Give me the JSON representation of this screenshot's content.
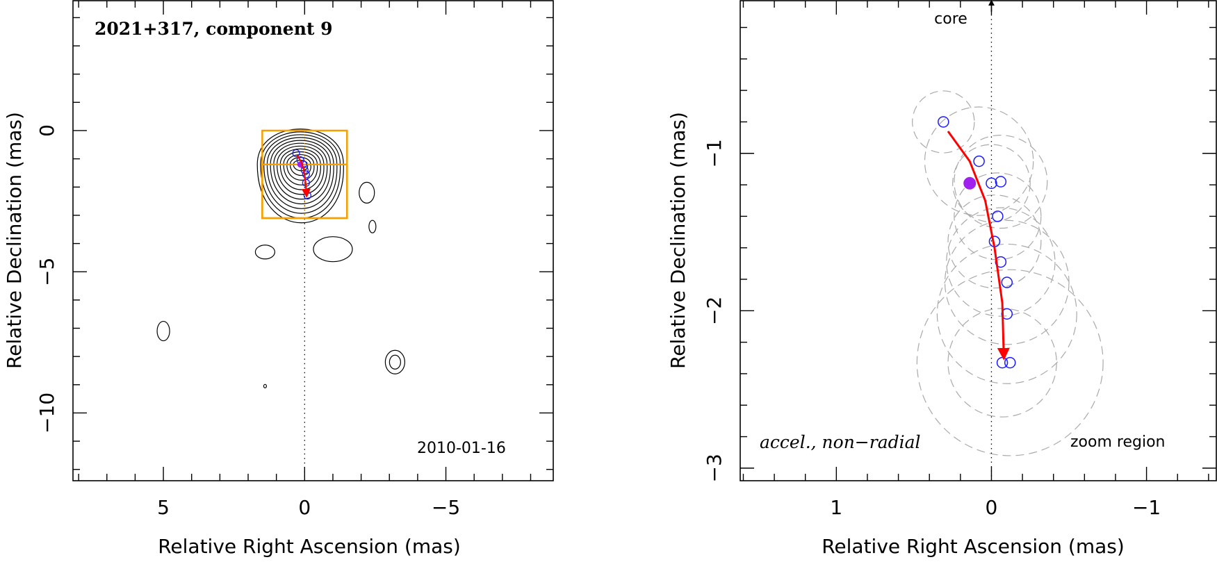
{
  "chart_data": [
    {
      "type": "scatter",
      "panel": "left",
      "title": "2021+317, component 9",
      "epoch": "2010-01-16",
      "xlabel": "Relative Right Ascension (mas)",
      "ylabel": "Relative Declination (mas)",
      "xlim": [
        8.2,
        -8.8
      ],
      "ylim": [
        -12.4,
        4.6
      ],
      "x_ticks": [
        5,
        0,
        -5
      ],
      "y_ticks": [
        0,
        -5,
        -10
      ],
      "x_tick_labels": [
        "5",
        "0",
        "−5"
      ],
      "y_tick_labels": [
        "0",
        "−5",
        "−10"
      ],
      "jet_axis_x": 0,
      "zoom_boxes": [
        {
          "x": [
            -1.5,
            1.5
          ],
          "y": [
            -3.1,
            0.0
          ]
        },
        {
          "x": [
            -1.5,
            1.5
          ],
          "y": [
            -3.1,
            -1.2
          ]
        }
      ],
      "component_positions": {
        "x": [
          0.3,
          0.15,
          0.05,
          0.0,
          -0.05,
          -0.05,
          -0.1
        ],
        "y": [
          -0.8,
          -1.05,
          -1.2,
          -1.4,
          -1.55,
          -1.85,
          -2.3
        ]
      },
      "current_position": {
        "x": 0.15,
        "y": -1.2
      },
      "trajectory": {
        "x": [
          0.27,
          0.12,
          0.03,
          -0.03,
          -0.07
        ],
        "y": [
          -0.87,
          -1.1,
          -1.4,
          -1.8,
          -2.32
        ]
      },
      "contours_note": "radio intensity contours"
    },
    {
      "type": "scatter",
      "panel": "right",
      "xlabel": "Relative Right Ascension (mas)",
      "ylabel": "Relative Declination (mas)",
      "xlim": [
        1.62,
        -1.45
      ],
      "ylim": [
        -3.08,
        -0.03
      ],
      "x_ticks": [
        1,
        0,
        -1
      ],
      "y_ticks": [
        -1,
        -2,
        -3
      ],
      "x_tick_labels": [
        "1",
        "0",
        "−1"
      ],
      "y_tick_labels": [
        "−1",
        "−2",
        "−3"
      ],
      "core_label": "core",
      "model_label": "accel., non−radial",
      "region_label": "zoom region",
      "positions": {
        "x": [
          0.31,
          0.08,
          0.0,
          -0.06,
          -0.04,
          -0.02,
          -0.06,
          -0.1,
          -0.1,
          -0.12,
          -0.07
        ],
        "y": [
          -0.8,
          -1.05,
          -1.19,
          -1.18,
          -1.4,
          -1.56,
          -1.69,
          -1.82,
          -2.02,
          -2.33,
          -2.33
        ]
      },
      "position_radii": [
        0.2,
        0.35,
        0.25,
        0.3,
        0.28,
        0.3,
        0.35,
        0.4,
        0.45,
        0.6,
        0.35
      ],
      "current_position": {
        "x": 0.14,
        "y": -1.19
      },
      "trajectory": {
        "x": [
          0.28,
          0.14,
          0.04,
          -0.02,
          -0.07,
          -0.08
        ],
        "y": [
          -0.86,
          -1.05,
          -1.3,
          -1.6,
          -1.95,
          -2.3
        ]
      }
    }
  ],
  "colors": {
    "axes": "#000000",
    "box": "#f5a000",
    "trajectory": "#ff0000",
    "marker": "#1a1aff",
    "current": "#a020f0",
    "uncertainty": "#a9a9a9",
    "contour": "#000000"
  }
}
